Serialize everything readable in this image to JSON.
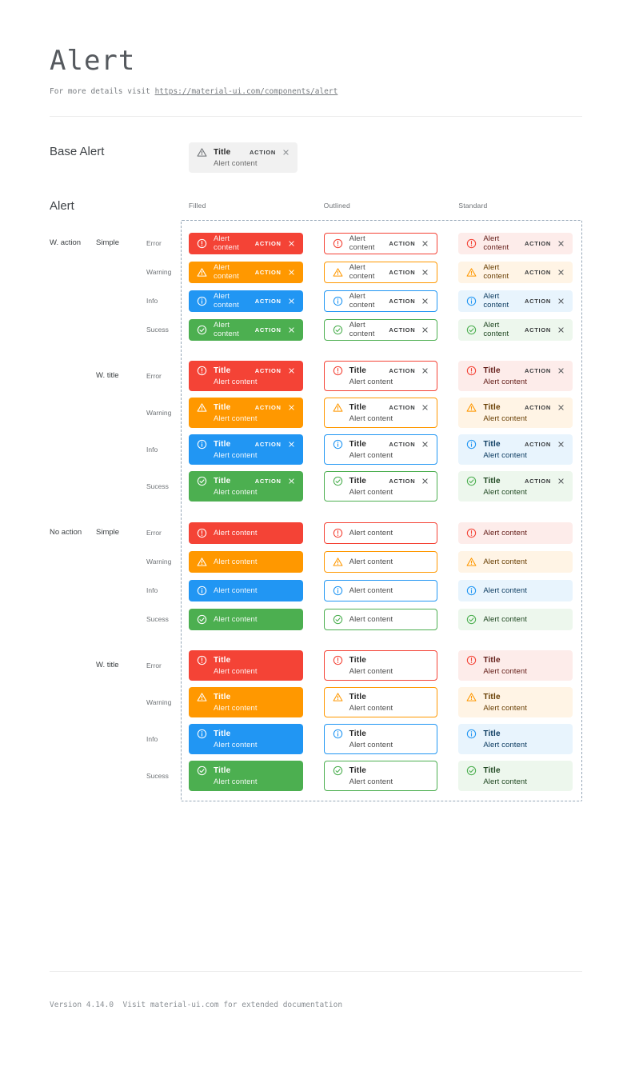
{
  "page": {
    "title": "Alert",
    "subtitle_prefix": "For more details visit ",
    "subtitle_link": "https://material-ui.com/components/alert",
    "footer": "Version 4.14.0  Visit material-ui.com for extended documentation"
  },
  "base_alert": {
    "section_label": "Base Alert",
    "icon": "warning-icon",
    "title": "Title",
    "content": "Alert content",
    "action": "ACTION",
    "close_icon": "close-icon"
  },
  "alerts": {
    "section_label": "Alert",
    "columns": [
      {
        "label": "Filled",
        "variant": "filled"
      },
      {
        "label": "Outlined",
        "variant": "outlined"
      },
      {
        "label": "Standard",
        "variant": "standard"
      }
    ],
    "severities": [
      {
        "label": "Error",
        "key": "error",
        "icon": "error-icon"
      },
      {
        "label": "Warning",
        "key": "warning",
        "icon": "warning-icon"
      },
      {
        "label": "Info",
        "key": "info",
        "icon": "info-icon"
      },
      {
        "label": "Sucess",
        "key": "success",
        "icon": "success-icon"
      }
    ],
    "groups": [
      {
        "label": "W. action",
        "with_action": true,
        "subgroups": [
          {
            "label": "Simple",
            "with_title": false
          },
          {
            "label": "W. title",
            "with_title": true
          }
        ]
      },
      {
        "label": "No action",
        "with_action": false,
        "subgroups": [
          {
            "label": "Simple",
            "with_title": false
          },
          {
            "label": "W. title",
            "with_title": true
          }
        ]
      }
    ],
    "text": {
      "title": "Title",
      "content": "Alert content",
      "action": "ACTION"
    }
  },
  "colors": {
    "error": {
      "main": "#f44336",
      "bg": "#fdecea",
      "text": "#611a15"
    },
    "warning": {
      "main": "#ff9800",
      "bg": "#fff4e5",
      "text": "#663c00"
    },
    "info": {
      "main": "#2196f3",
      "bg": "#e8f4fd",
      "text": "#0d3c61"
    },
    "success": {
      "main": "#4caf50",
      "bg": "#edf7ed",
      "text": "#1e4620"
    },
    "frame_dash": "#97a8b8"
  }
}
